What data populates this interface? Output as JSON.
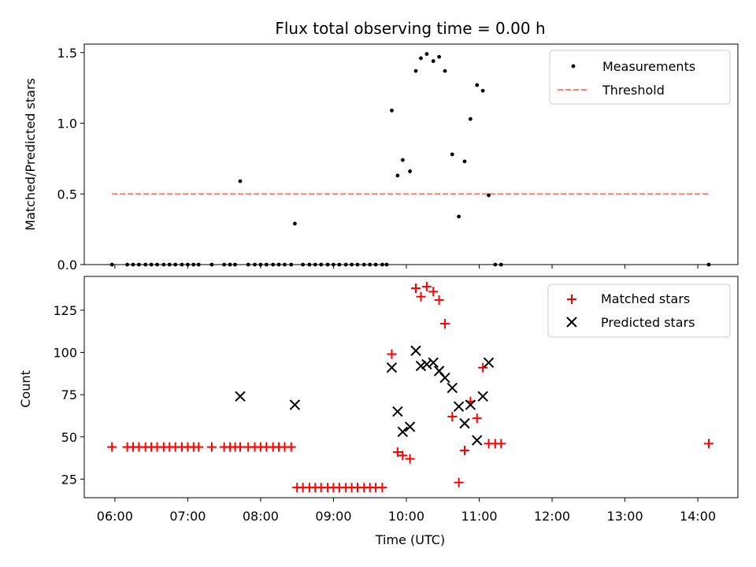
{
  "chart_data": [
    {
      "type": "scatter",
      "title": "Flux total observing time = 0.00 h",
      "xlabel": "",
      "ylabel": "Matched/Predicted stars",
      "ylim": [
        0,
        1.56
      ],
      "xlim": [
        5.58,
        14.55
      ],
      "yticks": [
        0,
        0.5,
        1.0,
        1.5
      ],
      "ytick_labels": [
        "0.0",
        "0.5",
        "1.0",
        "1.5"
      ],
      "legend_position": "top-right",
      "series": [
        {
          "name": "Measurements",
          "kind": "scatter",
          "marker": "dot",
          "color": "#000000",
          "x": [
            5.96,
            6.17,
            6.25,
            6.33,
            6.42,
            6.5,
            6.58,
            6.67,
            6.75,
            6.83,
            6.92,
            7.0,
            7.08,
            7.15,
            7.33,
            7.5,
            7.58,
            7.65,
            7.72,
            7.83,
            7.92,
            8.0,
            8.08,
            8.17,
            8.25,
            8.33,
            8.42,
            8.47,
            8.58,
            8.67,
            8.75,
            8.83,
            8.92,
            9.0,
            9.08,
            9.17,
            9.25,
            9.33,
            9.42,
            9.5,
            9.58,
            9.67,
            9.73,
            9.8,
            9.88,
            9.95,
            10.05,
            10.13,
            10.2,
            10.28,
            10.37,
            10.45,
            10.53,
            10.63,
            10.72,
            10.8,
            10.88,
            10.97,
            11.05,
            11.13,
            11.22,
            11.3,
            14.15
          ],
          "y": [
            0,
            0,
            0,
            0,
            0,
            0,
            0,
            0,
            0,
            0,
            0,
            0,
            0,
            0,
            0,
            0,
            0,
            0,
            0.59,
            0,
            0,
            0,
            0,
            0,
            0,
            0,
            0,
            0.29,
            0,
            0,
            0,
            0,
            0,
            0,
            0,
            0,
            0,
            0,
            0,
            0,
            0,
            0,
            0,
            1.09,
            0.63,
            0.74,
            0.66,
            1.37,
            1.46,
            1.49,
            1.44,
            1.47,
            1.37,
            0.78,
            0.34,
            0.73,
            1.03,
            1.27,
            1.23,
            0.49,
            0,
            0,
            0
          ]
        },
        {
          "name": "Threshold",
          "kind": "line",
          "style": "dashed",
          "color": "#ff7f7f",
          "x": [
            5.96,
            14.15
          ],
          "y": [
            0.5,
            0.5
          ]
        }
      ]
    },
    {
      "type": "scatter",
      "title": "",
      "xlabel": "Time (UTC)",
      "ylabel": "Count",
      "ylim": [
        14,
        145
      ],
      "xlim": [
        5.58,
        14.55
      ],
      "yticks": [
        25,
        50,
        75,
        100,
        125
      ],
      "ytick_labels": [
        "25",
        "50",
        "75",
        "100",
        "125"
      ],
      "xticks": [
        6,
        7,
        8,
        9,
        10,
        11,
        12,
        13,
        14
      ],
      "xtick_labels": [
        "06:00",
        "07:00",
        "08:00",
        "09:00",
        "10:00",
        "11:00",
        "12:00",
        "13:00",
        "14:00"
      ],
      "legend_position": "top-right",
      "series": [
        {
          "name": "Matched stars",
          "marker": "plus",
          "color": "#ff0000",
          "x": [
            5.96,
            6.17,
            6.25,
            6.33,
            6.42,
            6.5,
            6.58,
            6.67,
            6.75,
            6.83,
            6.92,
            7.0,
            7.08,
            7.15,
            7.33,
            7.5,
            7.58,
            7.65,
            7.72,
            7.83,
            7.92,
            8.0,
            8.08,
            8.17,
            8.25,
            8.33,
            8.42,
            8.5,
            8.58,
            8.67,
            8.75,
            8.83,
            8.92,
            9.0,
            9.08,
            9.17,
            9.25,
            9.33,
            9.42,
            9.5,
            9.58,
            9.67,
            9.8,
            9.88,
            9.95,
            10.05,
            10.13,
            10.2,
            10.28,
            10.37,
            10.45,
            10.53,
            10.63,
            10.72,
            10.8,
            10.88,
            10.97,
            11.05,
            11.13,
            11.22,
            11.3,
            14.15
          ],
          "y": [
            44,
            44,
            44,
            44,
            44,
            44,
            44,
            44,
            44,
            44,
            44,
            44,
            44,
            44,
            44,
            44,
            44,
            44,
            44,
            44,
            44,
            44,
            44,
            44,
            44,
            44,
            44,
            20,
            20,
            20,
            20,
            20,
            20,
            20,
            20,
            20,
            20,
            20,
            20,
            20,
            20,
            20,
            99,
            41,
            39,
            37,
            138,
            133,
            139,
            136,
            131,
            117,
            62,
            23,
            42,
            71,
            61,
            91,
            46,
            46,
            46,
            46
          ]
        },
        {
          "name": "Predicted stars",
          "marker": "x",
          "color": "#000000",
          "x": [
            7.72,
            8.47,
            9.8,
            9.88,
            9.95,
            10.05,
            10.13,
            10.2,
            10.28,
            10.37,
            10.45,
            10.53,
            10.63,
            10.72,
            10.8,
            10.88,
            10.97,
            11.05,
            11.13
          ],
          "y": [
            74,
            69,
            91,
            65,
            53,
            56,
            101,
            92,
            93,
            94,
            89,
            85,
            79,
            68,
            58,
            69,
            48,
            74,
            94
          ]
        }
      ]
    }
  ]
}
